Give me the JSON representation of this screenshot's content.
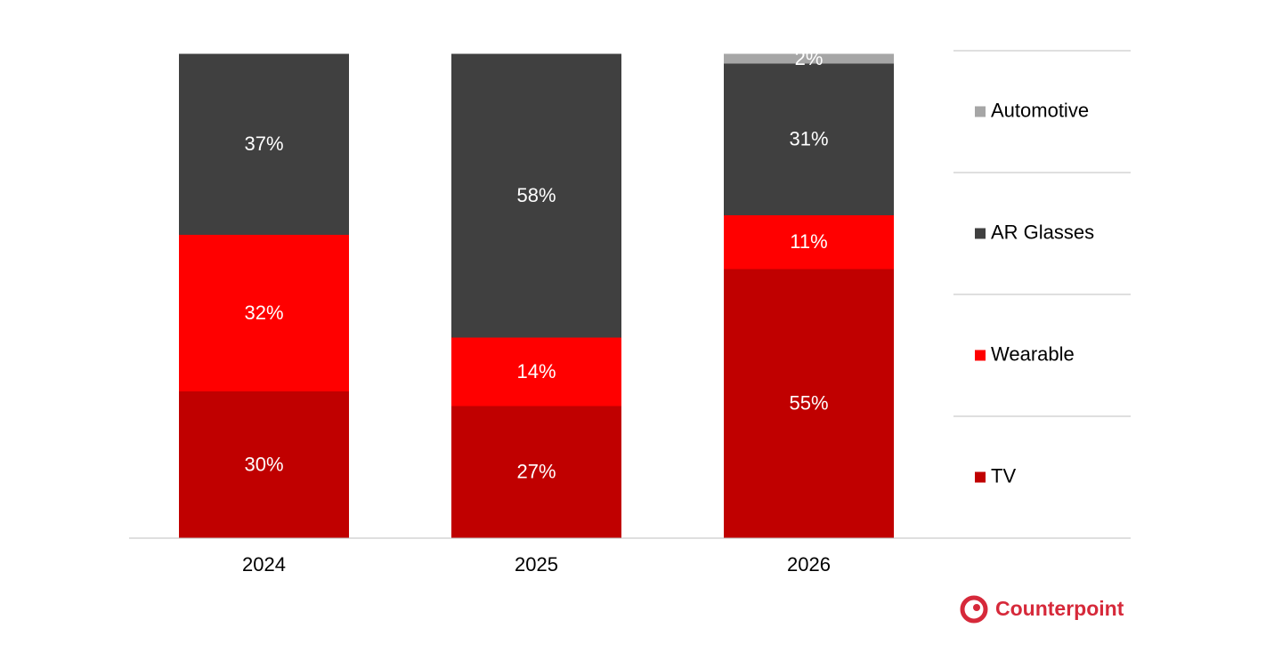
{
  "chart_data": {
    "type": "bar",
    "stacked": true,
    "categories": [
      "2024",
      "2025",
      "2026"
    ],
    "series": [
      {
        "name": "TV",
        "color": "#c00000",
        "values": [
          30,
          27,
          55
        ],
        "value_labels": [
          "30%",
          "27%",
          "55%"
        ]
      },
      {
        "name": "Wearable",
        "color": "#ff0000",
        "values": [
          32,
          14,
          11
        ],
        "value_labels": [
          "32%",
          "14%",
          "11%"
        ]
      },
      {
        "name": "AR Glasses",
        "color": "#404040",
        "values": [
          37,
          58,
          31
        ],
        "value_labels": [
          "37%",
          "58%",
          "31%"
        ]
      },
      {
        "name": "Automotive",
        "color": "#a6a6a6",
        "values": [
          null,
          null,
          2
        ],
        "value_labels": [
          null,
          null,
          "2%"
        ]
      }
    ],
    "legend": "right"
  },
  "logo": "Counterpoint"
}
